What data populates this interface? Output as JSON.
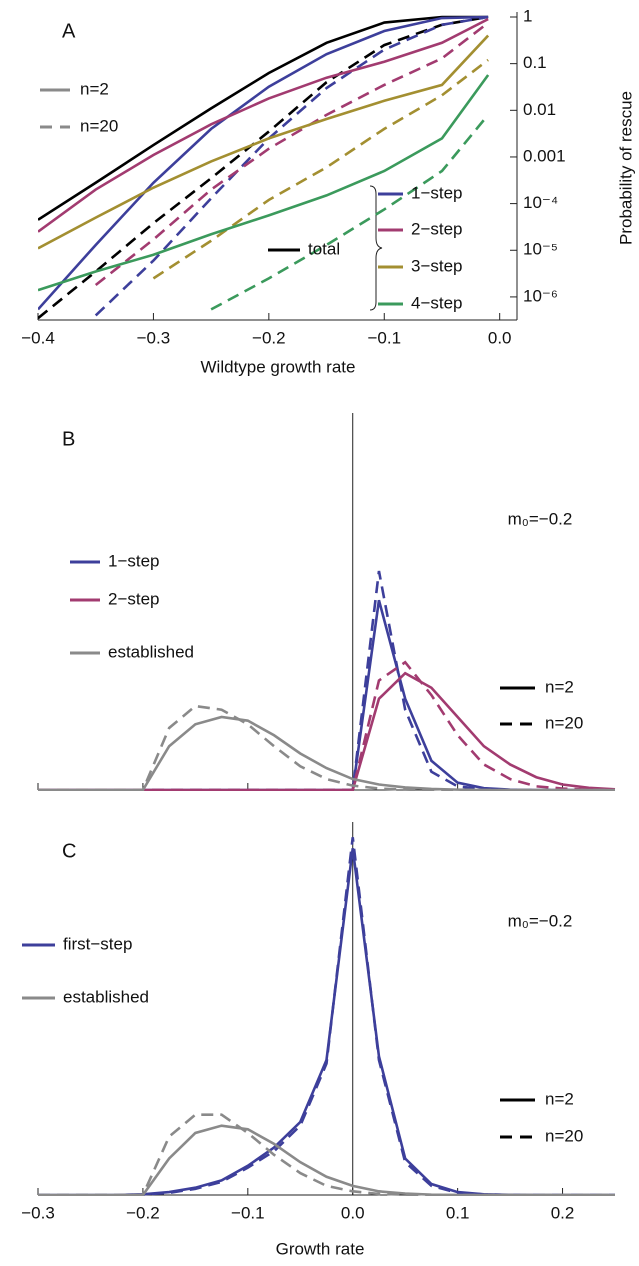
{
  "chart_data": [
    {
      "type": "line",
      "label": "A",
      "xlabel": "Wildtype growth rate",
      "ylabel": "Probability of rescue",
      "log_y": true,
      "y_axis_side": "right",
      "x": [
        -0.4,
        -0.35,
        -0.3,
        -0.25,
        -0.2,
        -0.15,
        -0.1,
        -0.05,
        -0.01
      ],
      "xlim": [
        -0.4,
        0.015
      ],
      "ylim": [
        3.2e-07,
        1
      ],
      "xticks": [
        {
          "value": -0.4,
          "label": "−0.4"
        },
        {
          "value": -0.3,
          "label": "−0.3"
        },
        {
          "value": -0.2,
          "label": "−0.2"
        },
        {
          "value": -0.1,
          "label": "−0.1"
        },
        {
          "value": 0,
          "label": "0.0"
        }
      ],
      "yticks": [
        1,
        0.1,
        0.01,
        0.001,
        {
          "value": 0.0001,
          "label": "10⁻⁴"
        },
        {
          "value": 1e-05,
          "label": "10⁻⁵"
        },
        {
          "value": 1e-06,
          "label": "10⁻⁶"
        }
      ],
      "linestyles": [
        {
          "name": "n=2",
          "dash": "solid",
          "color": "#8a8a8a"
        },
        {
          "name": "n=20",
          "dash": "dashed",
          "color": "#8a8a8a"
        }
      ],
      "series": [
        {
          "name": "total",
          "color": "#000000",
          "values": [
            [
              4.5e-05,
              0.00028,
              0.0018,
              0.011,
              0.063,
              0.28,
              0.76,
              1,
              1
            ],
            [
              3.5e-07,
              3.5e-06,
              3.8e-05,
              0.00035,
              0.0035,
              0.04,
              0.25,
              0.68,
              1
            ]
          ]
        },
        {
          "name": "1−step",
          "color": "#3d3f9b",
          "values": [
            [
              5.4e-07,
              1.3e-05,
              0.00028,
              0.004,
              0.032,
              0.16,
              0.5,
              0.95,
              1
            ],
            [
              null,
              4e-07,
              6e-06,
              0.00013,
              0.0025,
              0.03,
              0.2,
              0.68,
              1
            ]
          ]
        },
        {
          "name": "2−step",
          "color": "#a23b70",
          "values": [
            [
              2.5e-05,
              0.0002,
              0.0011,
              0.005,
              0.018,
              0.05,
              0.11,
              0.28,
              0.9
            ],
            [
              null,
              1.8e-06,
              1.7e-05,
              0.0002,
              0.0015,
              0.008,
              0.035,
              0.13,
              0.75
            ]
          ]
        },
        {
          "name": "3−step",
          "color": "#a38f31",
          "values": [
            [
              1.1e-05,
              5e-05,
              0.00022,
              0.0008,
              0.0025,
              0.0065,
              0.016,
              0.035,
              0.4
            ],
            [
              null,
              null,
              2.5e-06,
              1.6e-05,
              0.00012,
              0.0006,
              0.004,
              0.021,
              0.12
            ]
          ]
        },
        {
          "name": "4−step",
          "color": "#3b9a5c",
          "values": [
            [
              1.4e-06,
              3.5e-06,
              8e-06,
              2.2e-05,
              5.6e-05,
              0.00015,
              0.0005,
              0.0025,
              0.057
            ],
            [
              null,
              null,
              null,
              5.4e-07,
              2.5e-06,
              1.3e-05,
              7.5e-05,
              0.0005,
              0.008
            ]
          ]
        }
      ]
    },
    {
      "type": "line",
      "label": "B",
      "annotation": "m₀=−0.2",
      "x": [
        -0.3,
        -0.275,
        -0.25,
        -0.225,
        -0.2,
        -0.175,
        -0.15,
        -0.125,
        -0.1,
        -0.075,
        -0.05,
        -0.025,
        0,
        0.025,
        0.05,
        0.075,
        0.1,
        0.125,
        0.15,
        0.175,
        0.2,
        0.225,
        0.25
      ],
      "xlim": [
        -0.3,
        0.25
      ],
      "ylim": [
        0,
        1
      ],
      "xticks": [
        -0.3,
        -0.2,
        -0.1,
        0,
        0.1,
        0.2
      ],
      "linestyles": [
        {
          "name": "n=2",
          "dash": "solid",
          "color": "#000000"
        },
        {
          "name": "n=20",
          "dash": "dashed",
          "color": "#000000"
        }
      ],
      "series": [
        {
          "name": "1−step",
          "color": "#3d3f9b",
          "values": [
            [
              0,
              0,
              0,
              0,
              0,
              0,
              0,
              0,
              0,
              0,
              0,
              0,
              0,
              0.52,
              0.25,
              0.08,
              0.02,
              0.005,
              0.001,
              0,
              0,
              0,
              0
            ],
            [
              0,
              0,
              0,
              0,
              0,
              0,
              0,
              0,
              0,
              0,
              0,
              0,
              0,
              0.6,
              0.22,
              0.05,
              0.01,
              0.002,
              0,
              0,
              0,
              0,
              0
            ]
          ]
        },
        {
          "name": "2−step",
          "color": "#a23b70",
          "values": [
            [
              0,
              0,
              0,
              0,
              0,
              0,
              0,
              0,
              0,
              0,
              0,
              0,
              0,
              0.25,
              0.32,
              0.28,
              0.2,
              0.12,
              0.07,
              0.035,
              0.015,
              0.006,
              0.002
            ],
            [
              0,
              0,
              0,
              0,
              0,
              0,
              0,
              0,
              0,
              0,
              0,
              0,
              0,
              0.3,
              0.35,
              0.26,
              0.15,
              0.07,
              0.03,
              0.01,
              0.004,
              0.001,
              0
            ]
          ]
        },
        {
          "name": "established",
          "color": "#8a8a8a",
          "values": [
            [
              0,
              0,
              0,
              0,
              0,
              0.12,
              0.18,
              0.2,
              0.19,
              0.15,
              0.1,
              0.06,
              0.03,
              0.015,
              0.007,
              0.003,
              0.001,
              0,
              0,
              0,
              0,
              0,
              0
            ],
            [
              0,
              0,
              0,
              0,
              0,
              0.17,
              0.23,
              0.22,
              0.18,
              0.12,
              0.065,
              0.03,
              0.012,
              0.004,
              0.001,
              0,
              0,
              0,
              0,
              0,
              0,
              0,
              0
            ]
          ]
        }
      ]
    },
    {
      "type": "line",
      "label": "C",
      "annotation": "m₀=−0.2",
      "xlabel": "Growth rate",
      "x": [
        -0.3,
        -0.275,
        -0.25,
        -0.225,
        -0.2,
        -0.175,
        -0.15,
        -0.125,
        -0.1,
        -0.075,
        -0.05,
        -0.025,
        0,
        0.025,
        0.05,
        0.075,
        0.1,
        0.125,
        0.15,
        0.175,
        0.2,
        0.225,
        0.25
      ],
      "xlim": [
        -0.3,
        0.25
      ],
      "ylim": [
        0,
        1
      ],
      "xticks": [
        {
          "value": -0.3,
          "label": "−0.3"
        },
        {
          "value": -0.2,
          "label": "−0.2"
        },
        {
          "value": -0.1,
          "label": "−0.1"
        },
        {
          "value": 0,
          "label": "0.0"
        },
        0.1,
        0.2
      ],
      "linestyles": [
        {
          "name": "n=2",
          "dash": "solid",
          "color": "#000000"
        },
        {
          "name": "n=20",
          "dash": "dashed",
          "color": "#000000"
        }
      ],
      "series": [
        {
          "name": "first−step",
          "color": "#3d3f9b",
          "values": [
            [
              0,
              0,
              0,
              0,
              0.002,
              0.008,
              0.02,
              0.04,
              0.08,
              0.13,
              0.2,
              0.37,
              0.95,
              0.38,
              0.1,
              0.03,
              0.008,
              0.002,
              0.0005,
              0,
              0,
              0,
              0
            ],
            [
              0,
              0,
              0,
              0,
              0.001,
              0.006,
              0.017,
              0.036,
              0.075,
              0.12,
              0.19,
              0.36,
              0.98,
              0.37,
              0.09,
              0.025,
              0.006,
              0.0015,
              0,
              0,
              0,
              0,
              0
            ]
          ]
        },
        {
          "name": "established",
          "color": "#8a8a8a",
          "values": [
            [
              0,
              0,
              0,
              0,
              0,
              0.1,
              0.17,
              0.19,
              0.18,
              0.14,
              0.09,
              0.05,
              0.025,
              0.01,
              0.004,
              0.001,
              0,
              0,
              0,
              0,
              0,
              0,
              0
            ],
            [
              0,
              0,
              0,
              0,
              0,
              0.16,
              0.22,
              0.22,
              0.17,
              0.11,
              0.06,
              0.025,
              0.01,
              0.003,
              0.001,
              0,
              0,
              0,
              0,
              0,
              0,
              0,
              0
            ]
          ]
        }
      ]
    }
  ]
}
